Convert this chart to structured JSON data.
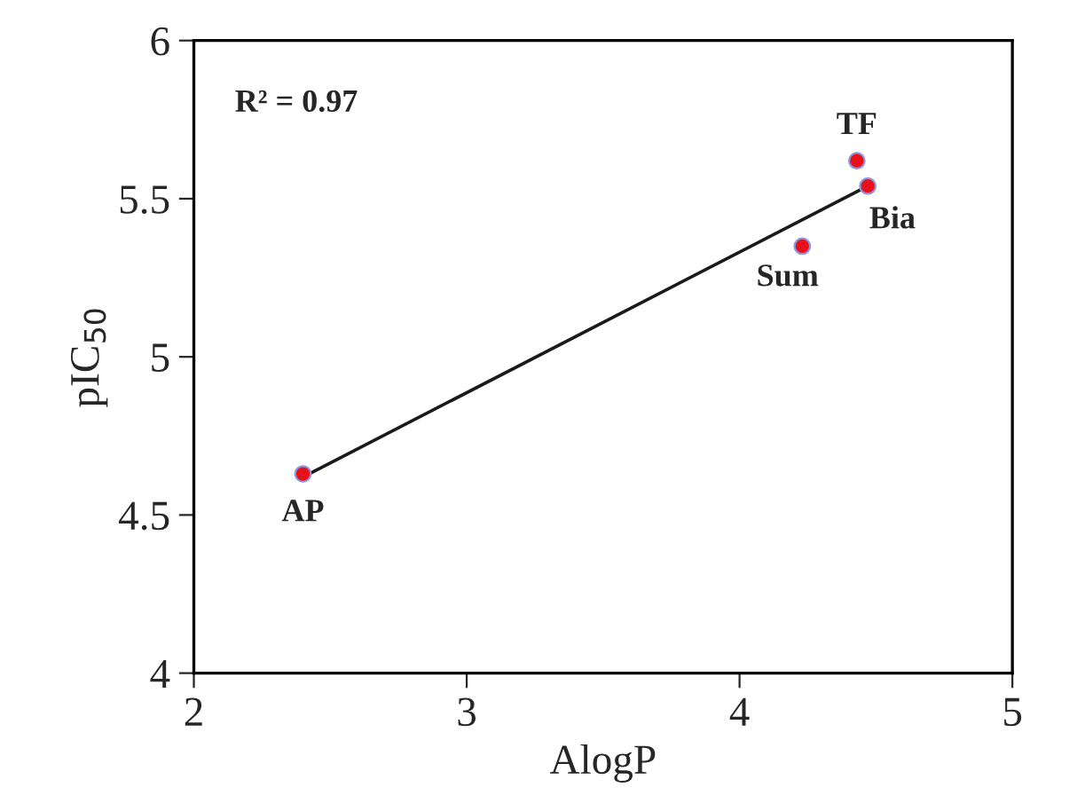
{
  "chart_data": {
    "type": "scatter",
    "xlabel": "AlogP",
    "ylabel": "pIC$_{50}$",
    "xlim": [
      2,
      5
    ],
    "ylim": [
      4,
      6
    ],
    "xticks": [
      2,
      3,
      4,
      5
    ],
    "yticks": [
      4,
      {
        "value": 4.5,
        "label": "4.5"
      },
      5,
      {
        "value": 5.5,
        "label": "5.5"
      },
      6
    ],
    "grid": false,
    "legend": false,
    "marker": "circle",
    "series": [
      {
        "color": "#e8101a",
        "x": [
          2.4,
          4.43,
          4.47,
          4.23
        ],
        "values": [
          4.63,
          5.62,
          5.54,
          5.35
        ]
      },
      {
        "type": "line",
        "color": "#1a1a1a",
        "x": [
          2.4,
          4.47
        ],
        "values": [
          4.62,
          5.54
        ],
        "line_style": "solid",
        "marker": "none"
      }
    ],
    "annotations": [
      "R² = 0.97",
      {
        "text": "AP",
        "x": 2.4,
        "y": 4.63
      },
      {
        "text": "TF",
        "x": 4.43,
        "y": 5.62
      },
      {
        "text": "Bia",
        "x": 4.47,
        "y": 5.54
      },
      {
        "text": "Sum",
        "x": 4.23,
        "y": 5.35
      }
    ]
  }
}
